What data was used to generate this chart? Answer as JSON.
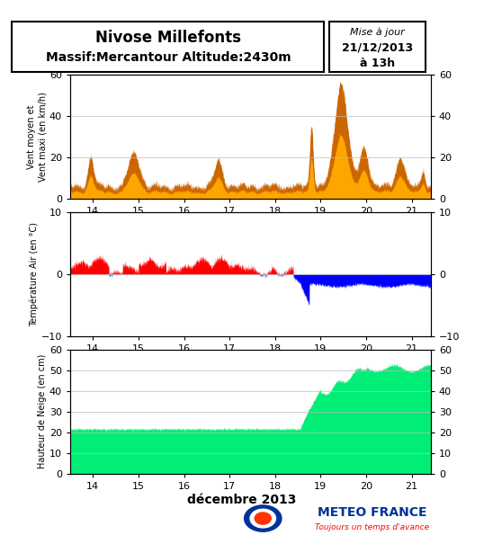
{
  "title_line1": "Nivose Millefonts",
  "title_line2": "Massif:Mercantour Altitude:2430m",
  "mise_a_jour": "Mise à jour",
  "date_update": "21/12/2013",
  "heure_update": "à 13h",
  "xlabel": "décembre 2013",
  "ylabel1": "Vent moyen et\nVent maxi (en km/h)",
  "ylabel2": "Température Air (en °C)",
  "ylabel3": "Hauteur de Neige (en cm)",
  "xmin": 13.5,
  "xmax": 21.42,
  "xticks": [
    14,
    15,
    16,
    17,
    18,
    19,
    20,
    21
  ],
  "wind_ylim": [
    0,
    60
  ],
  "temp_ylim": [
    -10,
    10
  ],
  "snow_ylim": [
    0,
    60
  ],
  "wind_yticks": [
    0,
    20,
    40,
    60
  ],
  "temp_yticks": [
    -10,
    0,
    10
  ],
  "snow_yticks": [
    0,
    10,
    20,
    30,
    40,
    50,
    60
  ],
  "color_wind_max": "#CC6600",
  "color_wind_mean": "#FFA500",
  "color_temp_pos": "#FF0000",
  "color_temp_neg": "#0000FF",
  "color_snow": "#00EE76",
  "bg_color": "#FFFFFF",
  "grid_color": "#BBBBBB",
  "meteo_france_blue": "#003399",
  "meteo_france_red": "#FF0000",
  "meteo_france_text": "METEO FRANCE",
  "meteo_france_sub": "Toujours un temps d'avance"
}
